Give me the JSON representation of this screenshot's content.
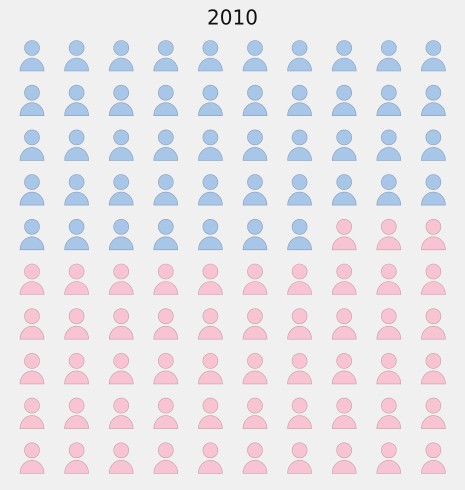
{
  "chart_data": {
    "type": "pictogram",
    "title": "2010",
    "values": [
      47,
      53
    ],
    "colors": [
      "#a8c6e8",
      "#f8c4d3"
    ]
  }
}
